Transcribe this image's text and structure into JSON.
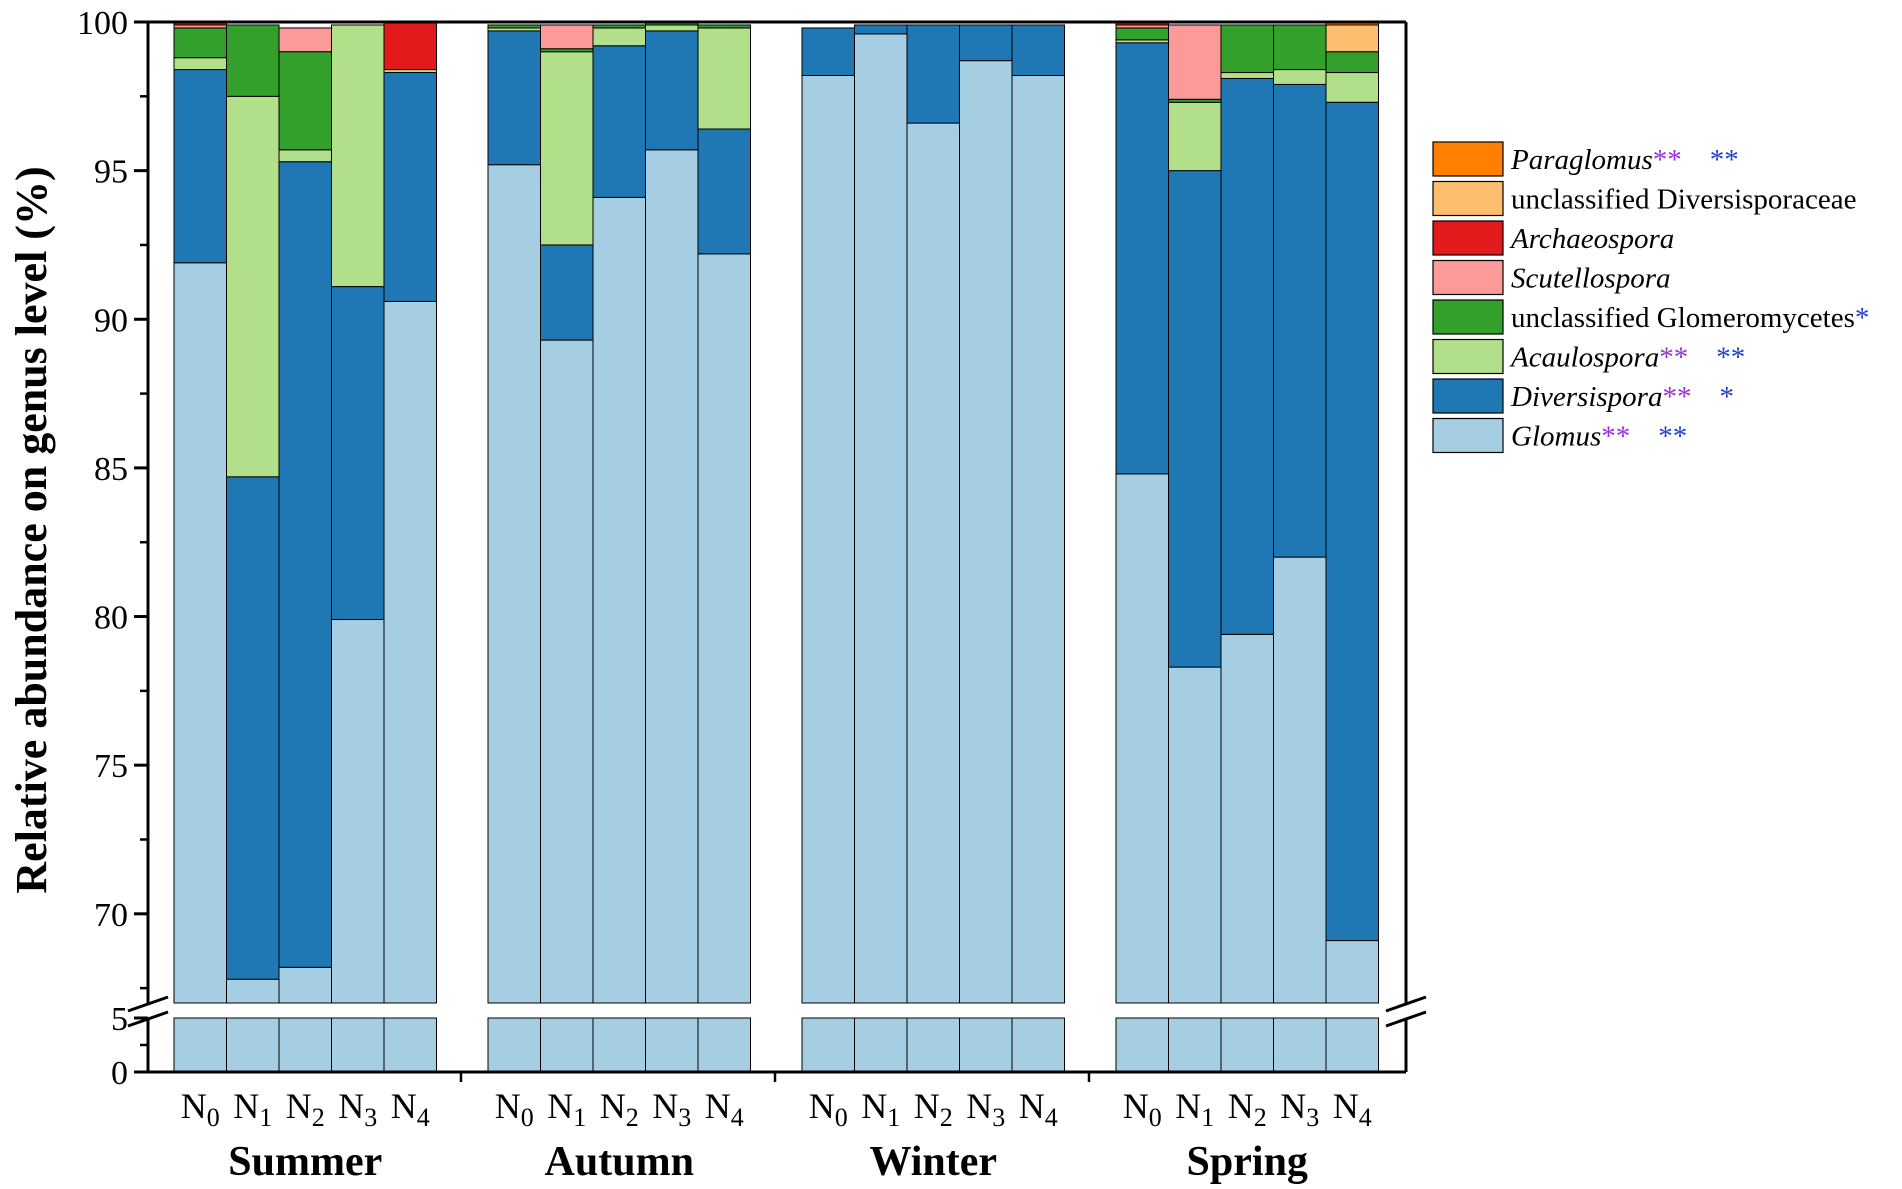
{
  "chart_data": {
    "type": "bar",
    "stacked": true,
    "ylabel": "Relative abundance on genus level (%)",
    "ylim": [
      0,
      100
    ],
    "y_axis_break": {
      "from": 5,
      "to": 67
    },
    "y_ticks": [
      "0",
      "5",
      "70",
      "75",
      "80",
      "85",
      "90",
      "95",
      "100"
    ],
    "seasons": [
      "Summer",
      "Autumn",
      "Winter",
      "Spring"
    ],
    "treatments": [
      "N",
      "N",
      "N",
      "N",
      "N"
    ],
    "treatment_subs": [
      "0",
      "1",
      "2",
      "3",
      "4"
    ],
    "series": [
      {
        "name": "Glomus",
        "italic": true,
        "color": "#a6cee3",
        "marks": [
          "**",
          "**"
        ],
        "values": [
          91.9,
          67.8,
          68.2,
          79.9,
          90.6,
          95.2,
          89.3,
          94.1,
          95.7,
          92.2,
          98.2,
          99.6,
          96.6,
          98.7,
          98.2,
          84.8,
          78.3,
          79.4,
          82.0,
          69.1
        ]
      },
      {
        "name": "Diversispora",
        "italic": true,
        "color": "#1f78b4",
        "marks": [
          "**",
          "*"
        ],
        "values": [
          6.5,
          16.9,
          27.1,
          11.2,
          7.7,
          4.5,
          3.2,
          5.1,
          4.0,
          4.2,
          1.6,
          0.3,
          3.3,
          1.2,
          1.7,
          14.5,
          16.7,
          18.7,
          15.9,
          28.2
        ]
      },
      {
        "name": "Acaulospora",
        "italic": true,
        "color": "#b2df8a",
        "marks": [
          "**",
          "**"
        ],
        "values": [
          0.4,
          12.8,
          0.4,
          8.8,
          0.1,
          0.1,
          6.5,
          0.6,
          0.2,
          3.4,
          0.0,
          0.0,
          0.0,
          0.0,
          0.0,
          0.1,
          2.3,
          0.2,
          0.5,
          1.0
        ]
      },
      {
        "name": "unclassified Glomeromycetes",
        "italic": false,
        "color": "#33a02c",
        "marks": [
          "",
          "*"
        ],
        "values": [
          1.0,
          2.4,
          3.3,
          0.0,
          0.0,
          0.1,
          0.1,
          0.1,
          0.1,
          0.1,
          0.0,
          0.0,
          0.0,
          0.0,
          0.0,
          0.4,
          0.1,
          1.6,
          1.5,
          0.7
        ]
      },
      {
        "name": "Scutellospora",
        "italic": true,
        "color": "#fb9a99",
        "marks": [
          "",
          ""
        ],
        "values": [
          0.1,
          0.0,
          0.8,
          0.0,
          0.0,
          0.0,
          0.8,
          0.0,
          0.0,
          0.0,
          0.0,
          0.0,
          0.0,
          0.0,
          0.0,
          0.1,
          2.5,
          0.0,
          0.0,
          0.0
        ]
      },
      {
        "name": "Archaeospora",
        "italic": true,
        "color": "#e31a1c",
        "marks": [
          "",
          ""
        ],
        "values": [
          0.1,
          0.0,
          0.0,
          0.0,
          1.6,
          0.0,
          0.0,
          0.0,
          0.0,
          0.0,
          0.0,
          0.0,
          0.0,
          0.0,
          0.0,
          0.1,
          0.0,
          0.0,
          0.0,
          0.0
        ]
      },
      {
        "name": "unclassified Diversisporaceae",
        "italic": false,
        "color": "#fdbf6f",
        "marks": [
          "",
          ""
        ],
        "values": [
          0.0,
          0.0,
          0.0,
          0.0,
          0.0,
          0.0,
          0.0,
          0.0,
          0.0,
          0.0,
          0.0,
          0.0,
          0.0,
          0.0,
          0.0,
          0.0,
          0.0,
          0.0,
          0.0,
          0.9
        ]
      },
      {
        "name": "Paraglomus",
        "italic": true,
        "color": "#ff7f00",
        "marks": [
          "**",
          "**"
        ],
        "values": [
          0.0,
          0.0,
          0.0,
          0.0,
          0.0,
          0.0,
          0.0,
          0.0,
          0.0,
          0.0,
          0.0,
          0.0,
          0.0,
          0.0,
          0.0,
          0.0,
          0.0,
          0.0,
          0.0,
          0.1
        ]
      }
    ],
    "legend_position": "right",
    "mark_colors": [
      "#9b30d9",
      "#1f3fcf"
    ]
  }
}
